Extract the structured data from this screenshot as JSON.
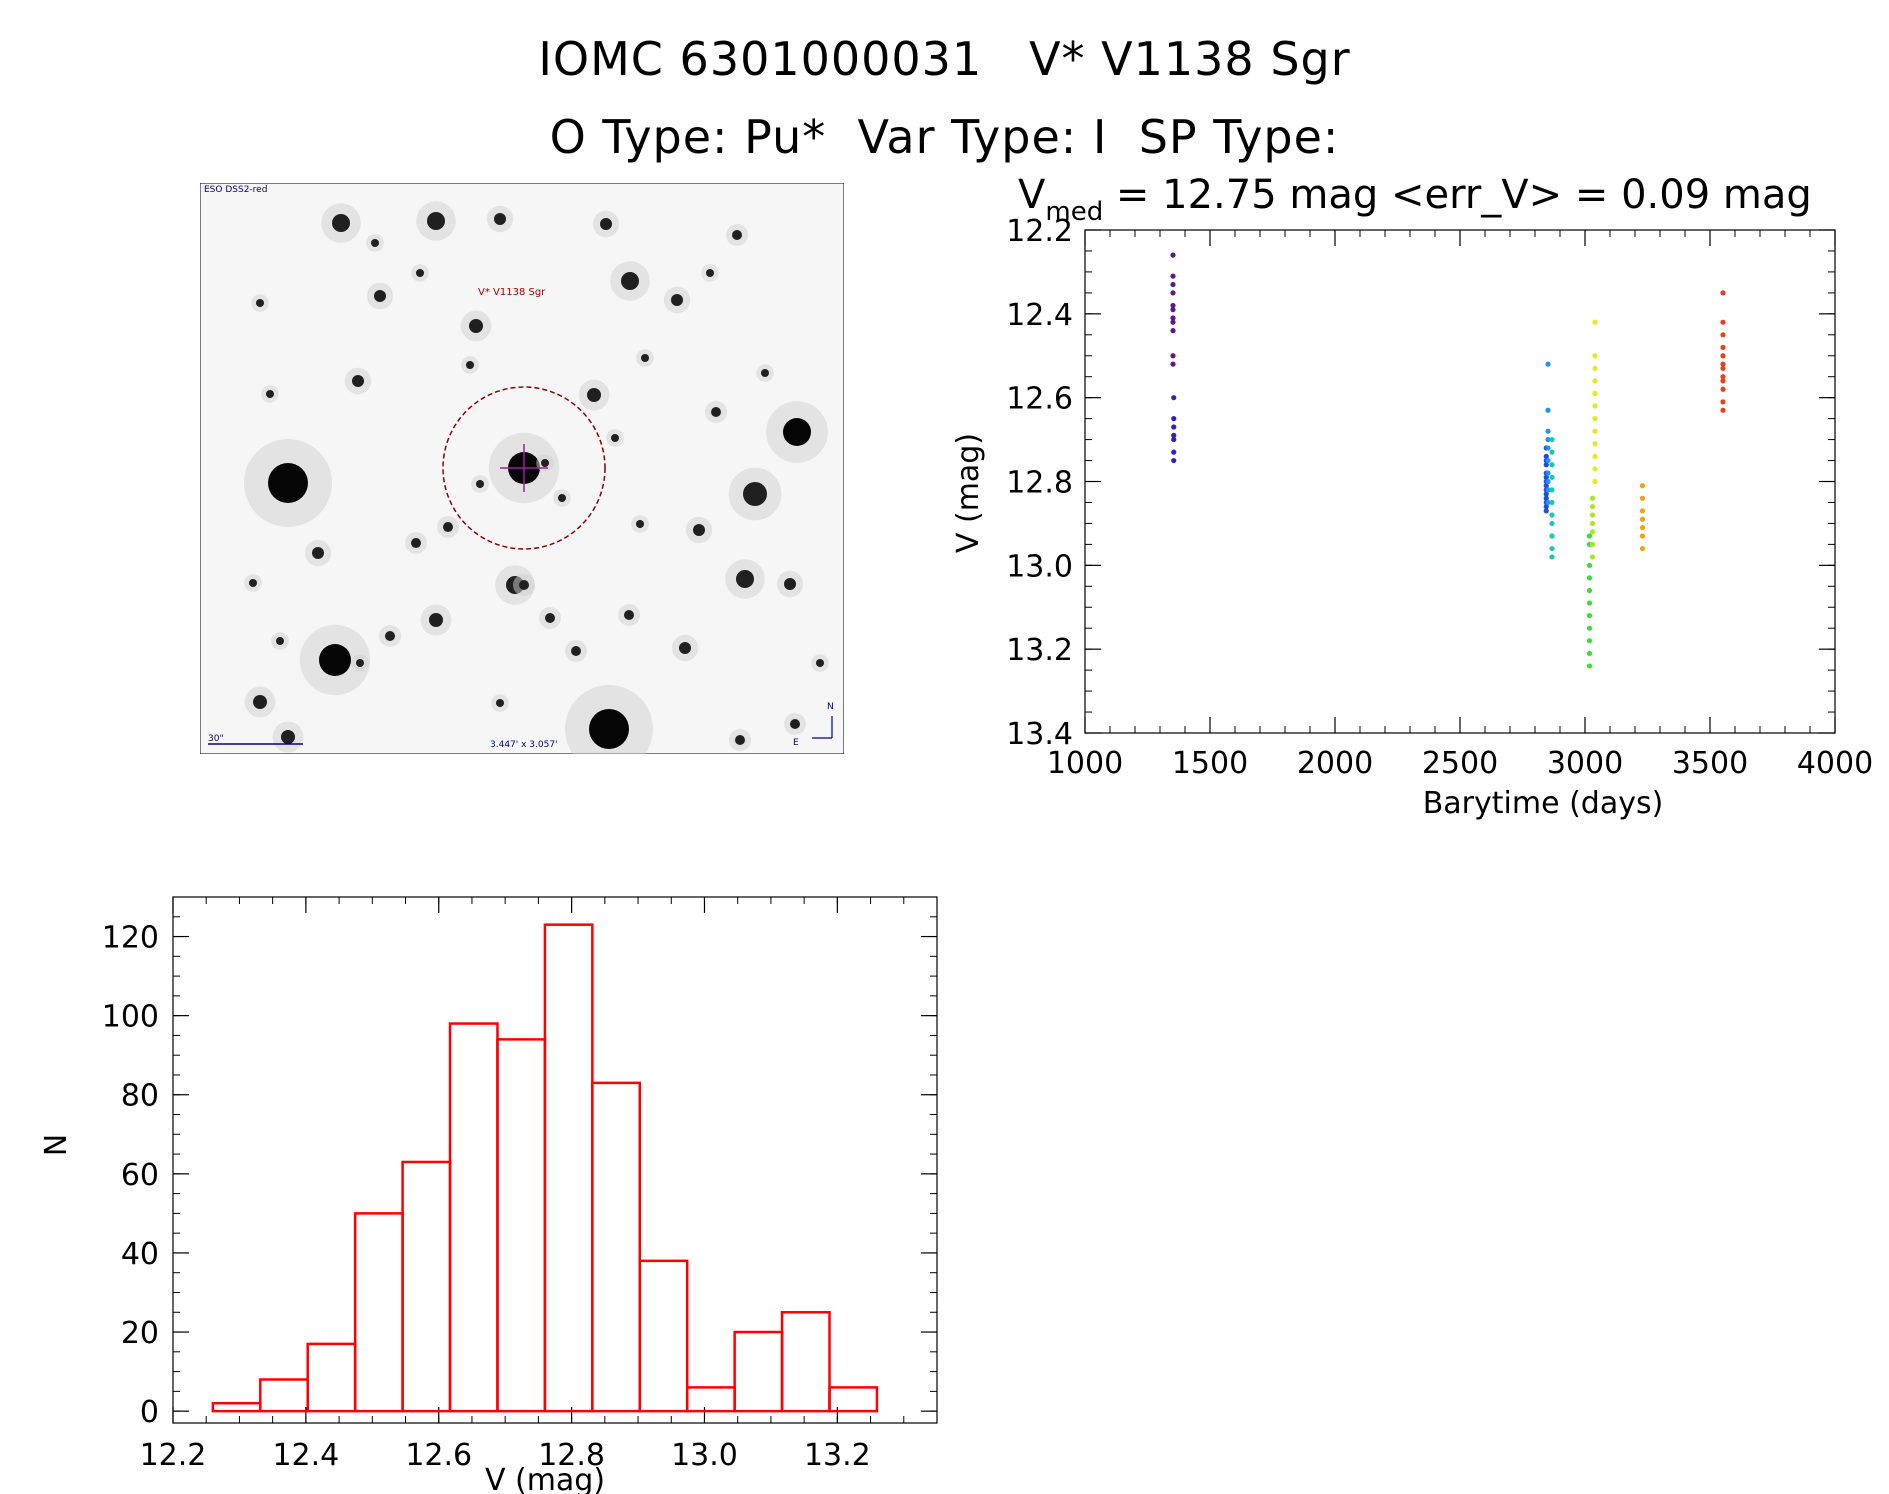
{
  "header": {
    "title_line1": "IOMC 6301000031   V* V1138 Sgr",
    "title_line2": "O Type: Pu*  Var Type: I  SP Type:"
  },
  "finding_chart": {
    "corner_label": "ESO DSS2-red",
    "target_label": "V* V1138 Sgr",
    "scale_label": "30\"",
    "fov_label": "3.447' x 3.057'",
    "north_label": "N",
    "east_label": "E"
  },
  "chart_data": [
    {
      "id": "light-curve",
      "type": "scatter",
      "title_main": "V",
      "title_sub": "med",
      "title_rest": " = 12.75 mag <err_V> = 0.09 mag",
      "xlabel": "Barytime (days)",
      "ylabel": "V (mag)",
      "xlim": [
        1000,
        4000
      ],
      "ylim": [
        12.2,
        13.4
      ],
      "y_inverted": true,
      "xticks": [
        1000,
        1500,
        2000,
        2500,
        3000,
        3500,
        4000
      ],
      "yticks": [
        "12.2",
        "12.4",
        "12.6",
        "12.8",
        "13.0",
        "13.2",
        "13.4"
      ],
      "groups": [
        {
          "x": 1352,
          "color": "#5b1a8a",
          "values": [
            12.26,
            12.31,
            12.33,
            12.35,
            12.38,
            12.39,
            12.41,
            12.42,
            12.44,
            12.5,
            12.52
          ]
        },
        {
          "x": 1355,
          "color": "#3a1fb0",
          "values": [
            12.6,
            12.65,
            12.67,
            12.69,
            12.7,
            12.73,
            12.75
          ]
        },
        {
          "x": 2845,
          "color": "#1a4de0",
          "values": [
            12.72,
            12.74,
            12.75,
            12.76,
            12.78,
            12.79,
            12.8,
            12.81,
            12.82,
            12.83,
            12.84,
            12.85,
            12.86,
            12.87
          ]
        },
        {
          "x": 2852,
          "color": "#1e90ff",
          "values": [
            12.52,
            12.63,
            12.68,
            12.7,
            12.72,
            12.75,
            12.78,
            12.8,
            12.82,
            12.85
          ]
        },
        {
          "x": 2868,
          "color": "#19c8b0",
          "values": [
            12.7,
            12.73,
            12.76,
            12.79,
            12.82,
            12.85,
            12.88,
            12.9,
            12.93,
            12.96,
            12.98
          ]
        },
        {
          "x": 3018,
          "color": "#3bdc3b",
          "values": [
            12.93,
            12.95,
            13.0,
            13.03,
            13.06,
            13.09,
            13.12,
            13.15,
            13.18,
            13.21,
            13.24
          ]
        },
        {
          "x": 3030,
          "color": "#a8e81e",
          "values": [
            12.84,
            12.86,
            12.88,
            12.9,
            12.92,
            12.95,
            12.98
          ]
        },
        {
          "x": 3040,
          "color": "#e8e81e",
          "values": [
            12.42,
            12.5,
            12.53,
            12.56,
            12.59,
            12.62,
            12.65,
            12.68,
            12.71,
            12.74,
            12.77,
            12.8
          ]
        },
        {
          "x": 3230,
          "color": "#f5a20a",
          "values": [
            12.81,
            12.84,
            12.87,
            12.89,
            12.91,
            12.93,
            12.96
          ]
        },
        {
          "x": 3552,
          "color": "#e8401a",
          "values": [
            12.35,
            12.42,
            12.45,
            12.48,
            12.5,
            12.52,
            12.53,
            12.55,
            12.56,
            12.58,
            12.61,
            12.63
          ]
        }
      ]
    },
    {
      "id": "histogram",
      "type": "bar",
      "xlabel": "V (mag)",
      "ylabel": "N",
      "xlim": [
        12.2,
        13.35
      ],
      "ylim": [
        -3,
        130
      ],
      "bin_edges_start": 12.26,
      "bin_width": 0.0714,
      "values": [
        2,
        8,
        17,
        50,
        63,
        98,
        94,
        123,
        83,
        38,
        6,
        20,
        25,
        6
      ],
      "xticks": [
        "12.2",
        "12.4",
        "12.6",
        "12.8",
        "13.0",
        "13.2"
      ],
      "yticks": [
        "0",
        "20",
        "40",
        "60",
        "80",
        "100",
        "120"
      ],
      "bar_color": "#ff0000"
    }
  ]
}
